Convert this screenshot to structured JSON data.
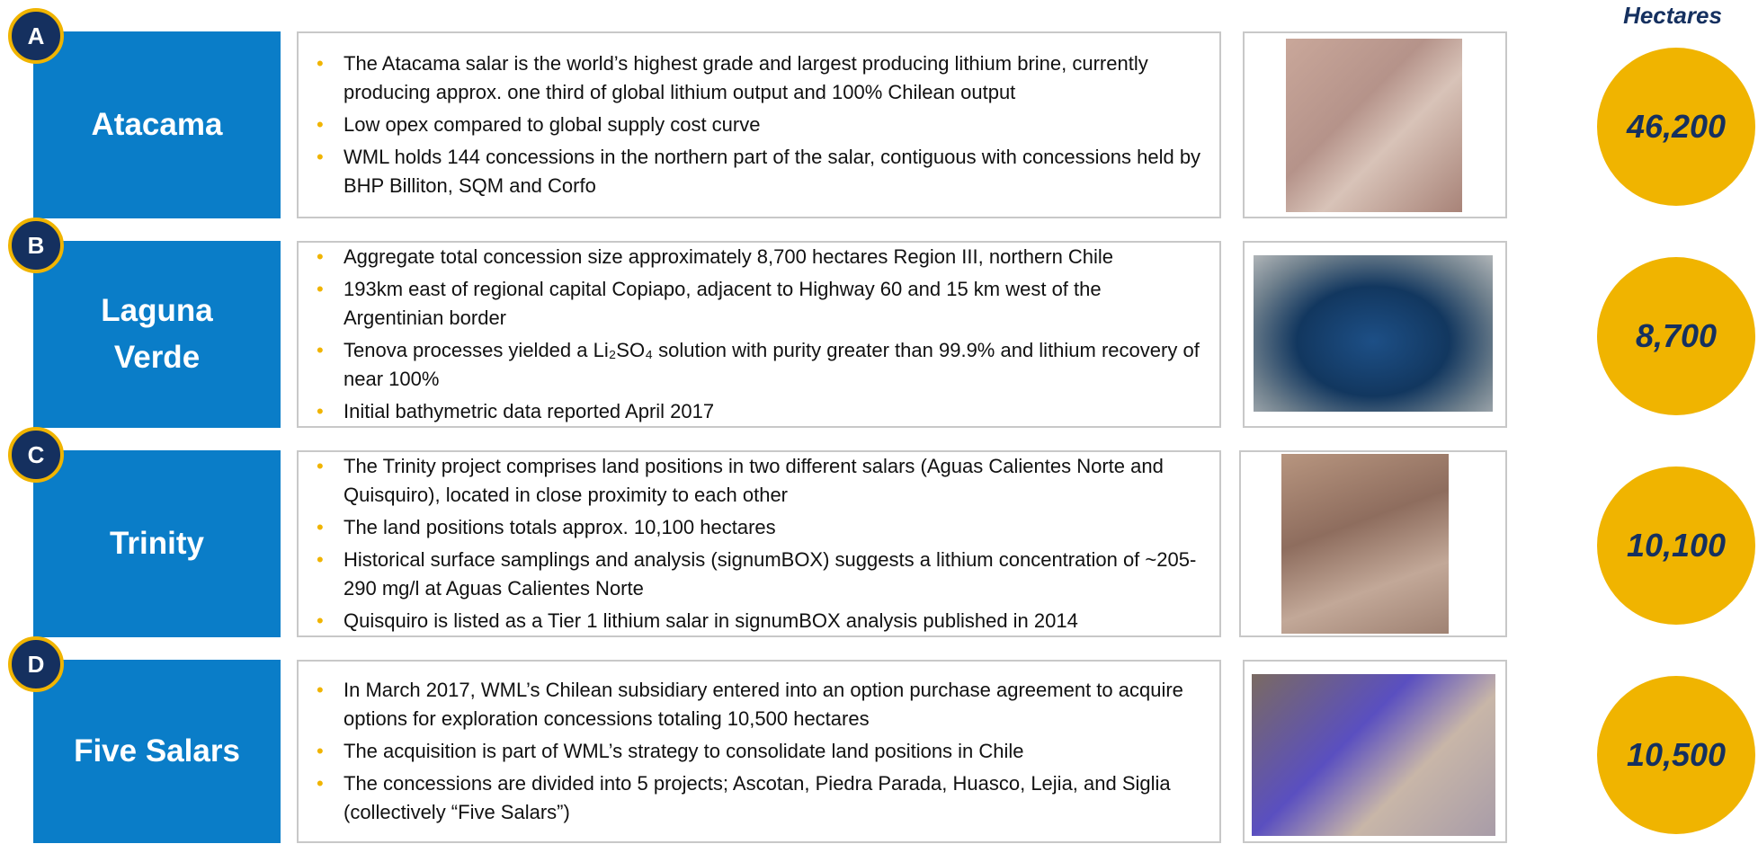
{
  "header": {
    "hectares_label": "Hectares"
  },
  "rows": [
    {
      "letter": "A",
      "name": "Atacama",
      "hectares": "46,200",
      "bullets": [
        "The Atacama salar is the world’s highest grade and largest producing lithium brine, currently producing approx. one third of global lithium output and 100% Chilean output",
        "Low opex compared to global supply cost curve",
        "WML holds 144 concessions in the northern part of the salar, contiguous with concessions held by BHP Billiton, SQM and Corfo"
      ]
    },
    {
      "letter": "B",
      "name": "Laguna Verde",
      "hectares": "8,700",
      "bullets": [
        "Aggregate total concession size approximately 8,700 hectares Region III, northern Chile",
        "193km east of regional capital Copiapo, adjacent to Highway 60 and 15 km west of the Argentinian border",
        "Tenova processes yielded a Li₂SO₄ solution with purity greater than 99.9% and lithium recovery of near 100%",
        "Initial bathymetric data reported April 2017"
      ]
    },
    {
      "letter": "C",
      "name": "Trinity",
      "hectares": "10,100",
      "bullets": [
        "The Trinity project comprises land positions in two different salars (Aguas Calientes Norte and Quisquiro), located in close proximity to each other",
        "The land positions totals approx. 10,100 hectares",
        "Historical surface samplings and analysis (signumBOX) suggests a lithium concentration of ~205-290 mg/l at Aguas Calientes Norte",
        "Quisquiro is listed as a Tier 1 lithium salar in signumBOX analysis published in 2014"
      ]
    },
    {
      "letter": "D",
      "name": "Five Salars",
      "hectares": "10,500",
      "bullets": [
        "In March 2017, WML’s Chilean subsidiary entered into an option purchase agreement to acquire options for exploration concessions totaling 10,500 hectares",
        "The acquisition is part of WML’s strategy to consolidate land positions in Chile",
        "The concessions are divided into 5 projects; Ascotan, Piedra Parada, Huasco, Lejia, and Siglia (collectively “Five Salars”)"
      ]
    }
  ]
}
